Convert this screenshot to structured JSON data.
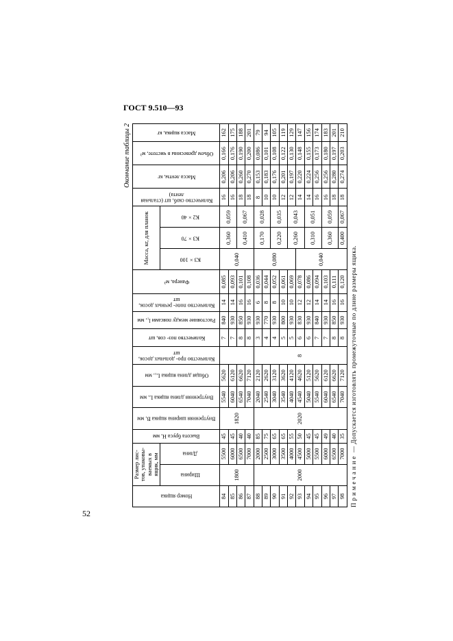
{
  "gost": "ГОСТ 9.510—93",
  "page_number": "52",
  "caption": "Окончание таблицы 2",
  "note_label": "Примечание",
  "note_text": "— Допускается изготовлять промежуточные по длине размеры ящика.",
  "headers": {
    "номер": "Номер ящика",
    "размер_листов": "Размер лис-\nтов, упаковы-\nваемых в\nящик, мм",
    "ширина": "Ширина",
    "длина": "Длина",
    "высота_бруса": "Высота бруса H,\nмм",
    "внутр_ширина": "Внутренняя ширина\nящика B, мм",
    "внутр_длина": "Внутренняя длина\nящика L, мм",
    "общая_длина": "Общая длина\nящика L₁, мм",
    "кол_прод_досок": "Количество про-\nдольных досок, шт",
    "кол_поп_связей": "Количество поз-\nсов, шт",
    "расст_поясами": "Расстояние между\nпоясами l₁, мм",
    "кол_поп_досок": "Количество попе-\nречных досок, шт",
    "фанера": "Фанера, м³",
    "масса_планок": "Масса, кг,\nдля планок",
    "k3x100": "К3×100",
    "k3x70": "К3×70",
    "k2x40": "К2×40",
    "кол_скоб": "Количество скоб,\nшт (стальная лента)",
    "масса_ленты": "Масса ленты, кг",
    "объем_древ": "Объем древесины\nв чистоте, м³",
    "масса_ящика": "Масса ящика, кг"
  },
  "group1": {
    "width": "1800",
    "b_inner": "1820",
    "prod_dosok": "10",
    "k3x100": "0,040",
    "rows": [
      {
        "n": "84",
        "d": "5500",
        "h": "45",
        "li": "5540",
        "lo": "5620",
        "ps": "7",
        "rp": "840",
        "pd": "14",
        "fan": "0,085",
        "k70": "0,360",
        "k40": "0,059",
        "sk": "16",
        "ml": "0,206",
        "od": "0,166",
        "my": "162"
      },
      {
        "n": "85",
        "d": "6000",
        "h": "45",
        "li": "6040",
        "lo": "6120",
        "ps": "7",
        "rp": "930",
        "pd": "14",
        "fan": "0,093",
        "k70": "",
        "k40": "",
        "sk": "16",
        "ml": "0,206",
        "od": "0,176",
        "my": "175"
      },
      {
        "n": "86",
        "d": "6500",
        "h": "40",
        "li": "6540",
        "lo": "6620",
        "ps": "8",
        "rp": "850",
        "pd": "16",
        "fan": "0,101",
        "k70": "0,410",
        "k40": "0,067",
        "sk": "18",
        "ml": "0,260",
        "od": "0,190",
        "my": "188"
      },
      {
        "n": "87",
        "d": "7000",
        "h": "40",
        "li": "7040",
        "lo": "7120",
        "ps": "8",
        "rp": "930",
        "pd": "16",
        "fan": "0,108",
        "k70": "",
        "k40": "",
        "sk": "18",
        "ml": "0,270",
        "od": "0,200",
        "my": "201"
      }
    ]
  },
  "group2": {
    "width": "2000",
    "b_inner": "2020",
    "prod_dosok": "8",
    "rows": [
      {
        "n": "88",
        "d": "2000",
        "h": "85",
        "li": "2040",
        "lo": "2120",
        "ps": "3",
        "rp": "930",
        "pd": "6",
        "fan": "0,036",
        "k100": "0,080",
        "k70": "0,170",
        "k40": "0,028",
        "sk": "8",
        "ml": "0,153",
        "od": "0,086",
        "my": "79"
      },
      {
        "n": "89",
        "d": "2500",
        "h": "75",
        "li": "2540",
        "lo": "2620",
        "ps": "4",
        "rp": "770",
        "pd": "8",
        "fan": "0,044",
        "k100": "",
        "k70": "",
        "k40": "",
        "sk": "10",
        "ml": "0,183",
        "od": "0,101",
        "my": "94"
      },
      {
        "n": "90",
        "d": "3000",
        "h": "65",
        "li": "3040",
        "lo": "3120",
        "ps": "4",
        "rp": "930",
        "pd": "8",
        "fan": "0,052",
        "k100": "",
        "k70": "0,220",
        "k40": "0,035",
        "sk": "10",
        "ml": "0,176",
        "od": "0,108",
        "my": "105"
      },
      {
        "n": "91",
        "d": "3500",
        "h": "65",
        "li": "3540",
        "lo": "3620",
        "ps": "5",
        "rp": "800",
        "pd": "10",
        "fan": "0,061",
        "k100": "",
        "k70": "",
        "k40": "",
        "sk": "12",
        "ml": "0,201",
        "od": "0,122",
        "my": "119"
      },
      {
        "n": "92",
        "d": "4000",
        "h": "55",
        "li": "4040",
        "lo": "4120",
        "ps": "5",
        "rp": "930",
        "pd": "10",
        "fan": "0,069",
        "k100": "",
        "k70": "0,260",
        "k40": "0,043",
        "sk": "12",
        "ml": "0,197",
        "od": "0,130",
        "my": "129"
      },
      {
        "n": "93",
        "d": "4500",
        "h": "50",
        "li": "4540",
        "lo": "4620",
        "ps": "6",
        "rp": "830",
        "pd": "12",
        "fan": "0,078",
        "k100": "0,040",
        "k70": "",
        "k40": "",
        "sk": "14",
        "ml": "0,220",
        "od": "0,148",
        "my": "147"
      },
      {
        "n": "94",
        "d": "5000",
        "h": "45",
        "li": "5040",
        "lo": "5120",
        "ps": "6",
        "rp": "930",
        "pd": "12",
        "fan": "0,086",
        "k100": "",
        "k70": "0,310",
        "k40": "0,051",
        "sk": "14",
        "ml": "0,224",
        "od": "0,155",
        "my": "156"
      },
      {
        "n": "95",
        "d": "5500",
        "h": "45",
        "li": "5540",
        "lo": "5620",
        "ps": "7",
        "rp": "840",
        "pd": "14",
        "fan": "0,094",
        "k100": "",
        "k70": "",
        "k40": "",
        "sk": "16",
        "ml": "0,256",
        "od": "0,173",
        "my": "174"
      },
      {
        "n": "96",
        "d": "6000",
        "h": "49",
        "li": "6040",
        "lo": "6120",
        "ps": "7",
        "rp": "930",
        "pd": "14",
        "fan": "0,103",
        "k100": "",
        "k70": "0,360",
        "k40": "0,059",
        "sk": "16",
        "ml": "0,256",
        "od": "0,180",
        "my": "183"
      },
      {
        "n": "97",
        "d": "6500",
        "h": "40",
        "li": "6540",
        "lo": "6620",
        "ps": "8",
        "rp": "850",
        "pd": "16",
        "fan": "0,111",
        "k100": "",
        "k70": "",
        "k40": "",
        "sk": "18",
        "ml": "0,280",
        "od": "0,197",
        "my": "201"
      },
      {
        "n": "98",
        "d": "7000",
        "h": "35",
        "li": "7040",
        "lo": "7120",
        "ps": "8",
        "rp": "930",
        "pd": "16",
        "fan": "0,120",
        "k100": "",
        "k70": "0,400",
        "k40": "0,067",
        "sk": "18",
        "ml": "0,274",
        "od": "0,203",
        "my": "210"
      }
    ]
  }
}
